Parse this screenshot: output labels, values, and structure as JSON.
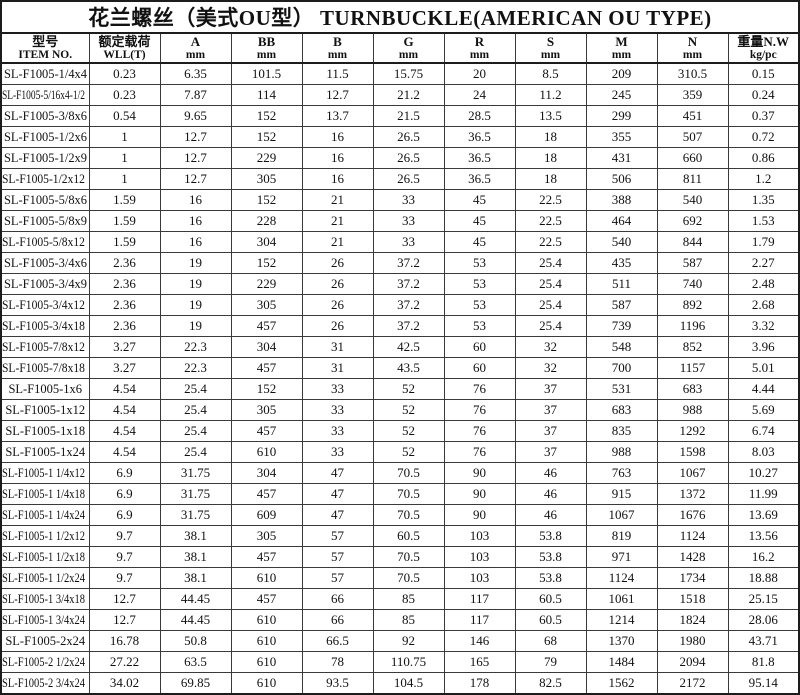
{
  "title": "花兰螺丝（美式OU型） TURNBUCKLE(AMERICAN OU TYPE)",
  "table": {
    "columns": [
      {
        "line1": "型号",
        "line2": "ITEM NO."
      },
      {
        "line1": "额定载荷",
        "line2": "WLL(T)"
      },
      {
        "line1": "A",
        "line2": "mm"
      },
      {
        "line1": "BB",
        "line2": "mm"
      },
      {
        "line1": "B",
        "line2": "mm"
      },
      {
        "line1": "G",
        "line2": "mm"
      },
      {
        "line1": "R",
        "line2": "mm"
      },
      {
        "line1": "S",
        "line2": "mm"
      },
      {
        "line1": "M",
        "line2": "mm"
      },
      {
        "line1": "N",
        "line2": "mm"
      },
      {
        "line1": "重量N.W",
        "line2": "kg/pc"
      }
    ],
    "rows": [
      [
        "SL-F1005-1/4x4",
        "0.23",
        "6.35",
        "101.5",
        "11.5",
        "15.75",
        "20",
        "8.5",
        "209",
        "310.5",
        "0.15"
      ],
      [
        "SL-F1005-5/16x4-1/2",
        "0.23",
        "7.87",
        "114",
        "12.7",
        "21.2",
        "24",
        "11.2",
        "245",
        "359",
        "0.24"
      ],
      [
        "SL-F1005-3/8x6",
        "0.54",
        "9.65",
        "152",
        "13.7",
        "21.5",
        "28.5",
        "13.5",
        "299",
        "451",
        "0.37"
      ],
      [
        "SL-F1005-1/2x6",
        "1",
        "12.7",
        "152",
        "16",
        "26.5",
        "36.5",
        "18",
        "355",
        "507",
        "0.72"
      ],
      [
        "SL-F1005-1/2x9",
        "1",
        "12.7",
        "229",
        "16",
        "26.5",
        "36.5",
        "18",
        "431",
        "660",
        "0.86"
      ],
      [
        "SL-F1005-1/2x12",
        "1",
        "12.7",
        "305",
        "16",
        "26.5",
        "36.5",
        "18",
        "506",
        "811",
        "1.2"
      ],
      [
        "SL-F1005-5/8x6",
        "1.59",
        "16",
        "152",
        "21",
        "33",
        "45",
        "22.5",
        "388",
        "540",
        "1.35"
      ],
      [
        "SL-F1005-5/8x9",
        "1.59",
        "16",
        "228",
        "21",
        "33",
        "45",
        "22.5",
        "464",
        "692",
        "1.53"
      ],
      [
        "SL-F1005-5/8x12",
        "1.59",
        "16",
        "304",
        "21",
        "33",
        "45",
        "22.5",
        "540",
        "844",
        "1.79"
      ],
      [
        "SL-F1005-3/4x6",
        "2.36",
        "19",
        "152",
        "26",
        "37.2",
        "53",
        "25.4",
        "435",
        "587",
        "2.27"
      ],
      [
        "SL-F1005-3/4x9",
        "2.36",
        "19",
        "229",
        "26",
        "37.2",
        "53",
        "25.4",
        "511",
        "740",
        "2.48"
      ],
      [
        "SL-F1005-3/4x12",
        "2.36",
        "19",
        "305",
        "26",
        "37.2",
        "53",
        "25.4",
        "587",
        "892",
        "2.68"
      ],
      [
        "SL-F1005-3/4x18",
        "2.36",
        "19",
        "457",
        "26",
        "37.2",
        "53",
        "25.4",
        "739",
        "1196",
        "3.32"
      ],
      [
        "SL-F1005-7/8x12",
        "3.27",
        "22.3",
        "304",
        "31",
        "42.5",
        "60",
        "32",
        "548",
        "852",
        "3.96"
      ],
      [
        "SL-F1005-7/8x18",
        "3.27",
        "22.3",
        "457",
        "31",
        "43.5",
        "60",
        "32",
        "700",
        "1157",
        "5.01"
      ],
      [
        "SL-F1005-1x6",
        "4.54",
        "25.4",
        "152",
        "33",
        "52",
        "76",
        "37",
        "531",
        "683",
        "4.44"
      ],
      [
        "SL-F1005-1x12",
        "4.54",
        "25.4",
        "305",
        "33",
        "52",
        "76",
        "37",
        "683",
        "988",
        "5.69"
      ],
      [
        "SL-F1005-1x18",
        "4.54",
        "25.4",
        "457",
        "33",
        "52",
        "76",
        "37",
        "835",
        "1292",
        "6.74"
      ],
      [
        "SL-F1005-1x24",
        "4.54",
        "25.4",
        "610",
        "33",
        "52",
        "76",
        "37",
        "988",
        "1598",
        "8.03"
      ],
      [
        "SL-F1005-1 1/4x12",
        "6.9",
        "31.75",
        "304",
        "47",
        "70.5",
        "90",
        "46",
        "763",
        "1067",
        "10.27"
      ],
      [
        "SL-F1005-1 1/4x18",
        "6.9",
        "31.75",
        "457",
        "47",
        "70.5",
        "90",
        "46",
        "915",
        "1372",
        "11.99"
      ],
      [
        "SL-F1005-1 1/4x24",
        "6.9",
        "31.75",
        "609",
        "47",
        "70.5",
        "90",
        "46",
        "1067",
        "1676",
        "13.69"
      ],
      [
        "SL-F1005-1 1/2x12",
        "9.7",
        "38.1",
        "305",
        "57",
        "60.5",
        "103",
        "53.8",
        "819",
        "1124",
        "13.56"
      ],
      [
        "SL-F1005-1 1/2x18",
        "9.7",
        "38.1",
        "457",
        "57",
        "70.5",
        "103",
        "53.8",
        "971",
        "1428",
        "16.2"
      ],
      [
        "SL-F1005-1 1/2x24",
        "9.7",
        "38.1",
        "610",
        "57",
        "70.5",
        "103",
        "53.8",
        "1124",
        "1734",
        "18.88"
      ],
      [
        "SL-F1005-1 3/4x18",
        "12.7",
        "44.45",
        "457",
        "66",
        "85",
        "117",
        "60.5",
        "1061",
        "1518",
        "25.15"
      ],
      [
        "SL-F1005-1 3/4x24",
        "12.7",
        "44.45",
        "610",
        "66",
        "85",
        "117",
        "60.5",
        "1214",
        "1824",
        "28.06"
      ],
      [
        "SL-F1005-2x24",
        "16.78",
        "50.8",
        "610",
        "66.5",
        "92",
        "146",
        "68",
        "1370",
        "1980",
        "43.71"
      ],
      [
        "SL-F1005-2 1/2x24",
        "27.22",
        "63.5",
        "610",
        "78",
        "110.75",
        "165",
        "79",
        "1484",
        "2094",
        "81.8"
      ],
      [
        "SL-F1005-2 3/4x24",
        "34.02",
        "69.85",
        "610",
        "93.5",
        "104.5",
        "178",
        "82.5",
        "1562",
        "2172",
        "95.14"
      ]
    ]
  }
}
